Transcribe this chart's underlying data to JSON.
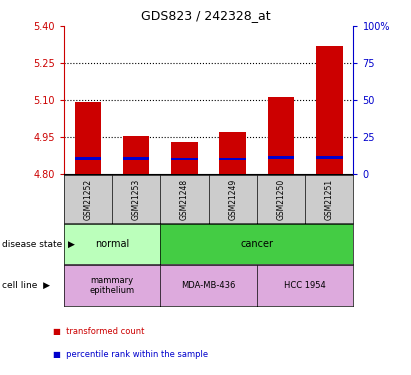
{
  "title": "GDS823 / 242328_at",
  "samples": [
    "GSM21252",
    "GSM21253",
    "GSM21248",
    "GSM21249",
    "GSM21250",
    "GSM21251"
  ],
  "transformed_counts": [
    5.095,
    4.955,
    4.93,
    4.97,
    5.115,
    5.32
  ],
  "percentile_values": [
    4.865,
    4.865,
    4.862,
    4.862,
    4.868,
    4.868
  ],
  "ylim": [
    4.8,
    5.4
  ],
  "yticks_left": [
    4.8,
    4.95,
    5.1,
    5.25,
    5.4
  ],
  "yticks_right": [
    0,
    25,
    50,
    75,
    100
  ],
  "bar_color": "#cc0000",
  "percentile_color": "#0000cc",
  "bar_width": 0.55,
  "grid_levels": [
    4.95,
    5.1,
    5.25
  ],
  "grid_color": "#000000",
  "disease_state_labels": [
    {
      "label": "normal",
      "cols": [
        0,
        1
      ],
      "color": "#bbffbb"
    },
    {
      "label": "cancer",
      "cols": [
        2,
        3,
        4,
        5
      ],
      "color": "#44cc44"
    }
  ],
  "cell_line_labels": [
    {
      "label": "mammary\nepithelium",
      "cols": [
        0,
        1
      ],
      "color": "#ddaadd"
    },
    {
      "label": "MDA-MB-436",
      "cols": [
        2,
        3
      ],
      "color": "#ddaadd"
    },
    {
      "label": "HCC 1954",
      "cols": [
        4,
        5
      ],
      "color": "#ddaadd"
    }
  ],
  "left_axis_color": "#cc0000",
  "right_axis_color": "#0000cc",
  "legend_items": [
    {
      "label": "transformed count",
      "color": "#cc0000"
    },
    {
      "label": "percentile rank within the sample",
      "color": "#0000cc"
    }
  ],
  "disease_state_row_label": "disease state",
  "cell_line_row_label": "cell line",
  "title_color": "#000000",
  "sample_box_color": "#cccccc",
  "spine_color": "#000000"
}
